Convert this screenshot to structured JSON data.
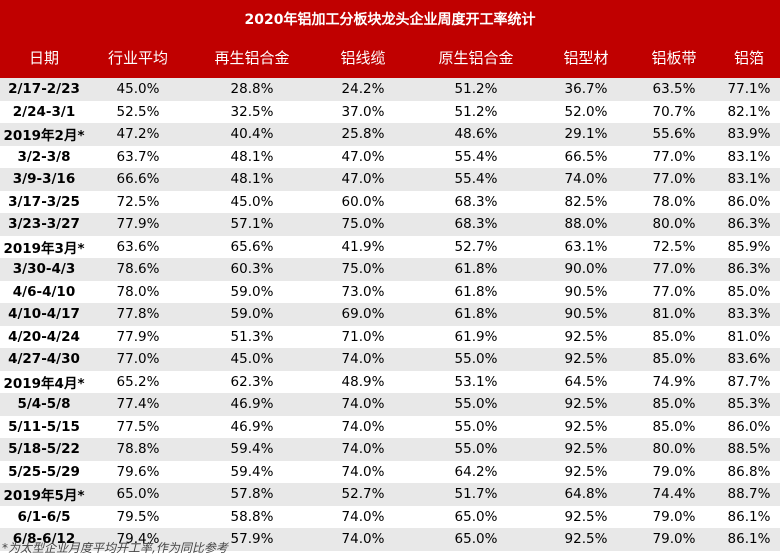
{
  "table": {
    "title": "2020年铝加工分板块龙头企业周度开工率统计",
    "headers": [
      "日期",
      "行业平均",
      "再生铝合金",
      "铝线缆",
      "原生铝合金",
      "铝型材",
      "铝板带",
      "铝箔"
    ],
    "rows": [
      [
        "2/17-2/23",
        "45.0%",
        "28.8%",
        "24.2%",
        "51.2%",
        "36.7%",
        "63.5%",
        "77.1%"
      ],
      [
        "2/24-3/1",
        "52.5%",
        "32.5%",
        "37.0%",
        "51.2%",
        "52.0%",
        "70.7%",
        "82.1%"
      ],
      [
        "2019年2月*",
        "47.2%",
        "40.4%",
        "25.8%",
        "48.6%",
        "29.1%",
        "55.6%",
        "83.9%"
      ],
      [
        "3/2-3/8",
        "63.7%",
        "48.1%",
        "47.0%",
        "55.4%",
        "66.5%",
        "77.0%",
        "83.1%"
      ],
      [
        "3/9-3/16",
        "66.6%",
        "48.1%",
        "47.0%",
        "55.4%",
        "74.0%",
        "77.0%",
        "83.1%"
      ],
      [
        "3/17-3/25",
        "72.5%",
        "45.0%",
        "60.0%",
        "68.3%",
        "82.5%",
        "78.0%",
        "86.0%"
      ],
      [
        "3/23-3/27",
        "77.9%",
        "57.1%",
        "75.0%",
        "68.3%",
        "88.0%",
        "80.0%",
        "86.3%"
      ],
      [
        "2019年3月*",
        "63.6%",
        "65.6%",
        "41.9%",
        "52.7%",
        "63.1%",
        "72.5%",
        "85.9%"
      ],
      [
        "3/30-4/3",
        "78.6%",
        "60.3%",
        "75.0%",
        "61.8%",
        "90.0%",
        "77.0%",
        "86.3%"
      ],
      [
        "4/6-4/10",
        "78.0%",
        "59.0%",
        "73.0%",
        "61.8%",
        "90.5%",
        "77.0%",
        "85.0%"
      ],
      [
        "4/10-4/17",
        "77.8%",
        "59.0%",
        "69.0%",
        "61.8%",
        "90.5%",
        "81.0%",
        "83.3%"
      ],
      [
        "4/20-4/24",
        "77.9%",
        "51.3%",
        "71.0%",
        "61.9%",
        "92.5%",
        "85.0%",
        "81.0%"
      ],
      [
        "4/27-4/30",
        "77.0%",
        "45.0%",
        "74.0%",
        "55.0%",
        "92.5%",
        "85.0%",
        "83.6%"
      ],
      [
        "2019年4月*",
        "65.2%",
        "62.3%",
        "48.9%",
        "53.1%",
        "64.5%",
        "74.9%",
        "87.7%"
      ],
      [
        "5/4-5/8",
        "77.4%",
        "46.9%",
        "74.0%",
        "55.0%",
        "92.5%",
        "85.0%",
        "85.3%"
      ],
      [
        "5/11-5/15",
        "77.5%",
        "46.9%",
        "74.0%",
        "55.0%",
        "92.5%",
        "85.0%",
        "86.0%"
      ],
      [
        "5/18-5/22",
        "78.8%",
        "59.4%",
        "74.0%",
        "55.0%",
        "92.5%",
        "80.0%",
        "88.5%"
      ],
      [
        "5/25-5/29",
        "79.6%",
        "59.4%",
        "74.0%",
        "64.2%",
        "92.5%",
        "79.0%",
        "86.8%"
      ],
      [
        "2019年5月*",
        "65.0%",
        "57.8%",
        "52.7%",
        "51.7%",
        "64.8%",
        "74.4%",
        "88.7%"
      ],
      [
        "6/1-6/5",
        "79.5%",
        "58.8%",
        "74.0%",
        "65.0%",
        "92.5%",
        "79.0%",
        "86.1%"
      ],
      [
        "6/8-6/12",
        "79.4%",
        "57.9%",
        "74.0%",
        "65.0%",
        "92.5%",
        "79.0%",
        "86.1%"
      ]
    ],
    "footnote": "*为太型企业月度平均开工率,作为同比参考",
    "colors": {
      "header_bg": "#c00000",
      "header_text": "#ffffff",
      "stripe": "#e8e8e8"
    }
  }
}
